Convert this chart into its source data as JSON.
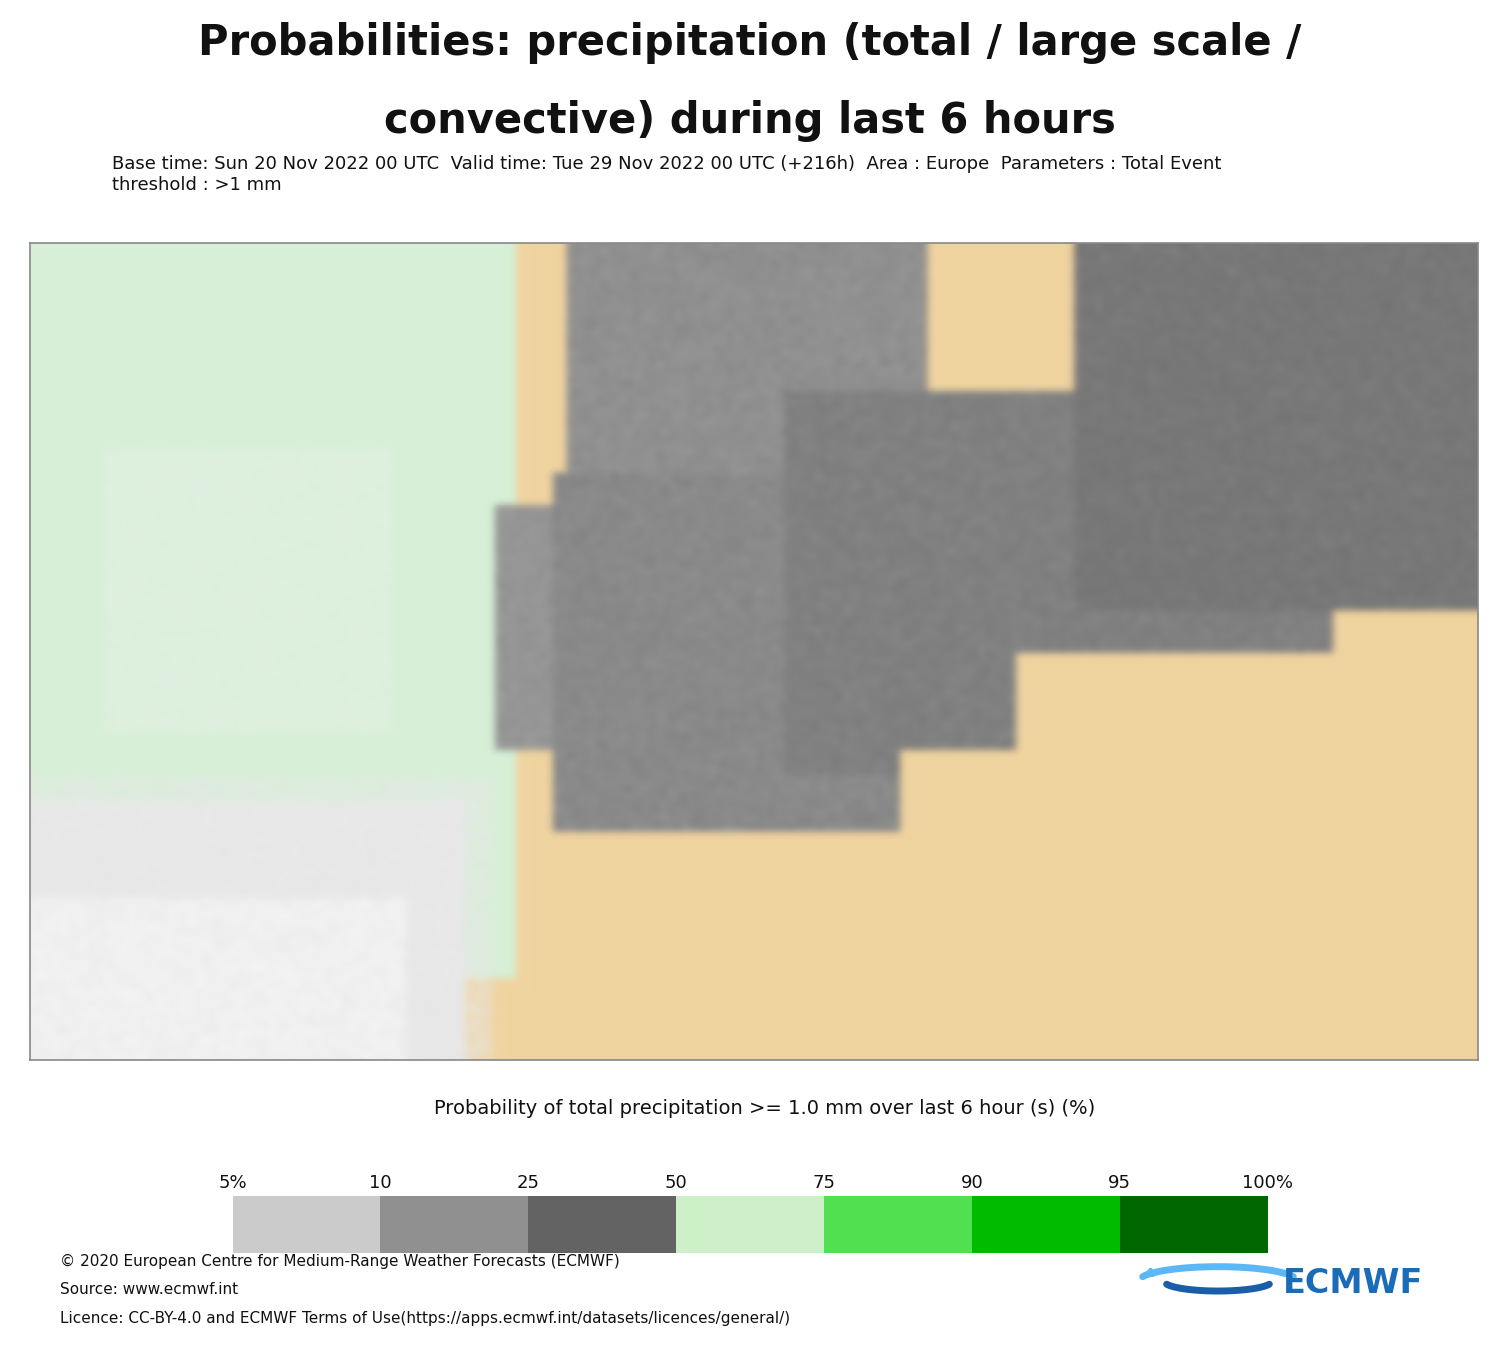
{
  "title_line1": "Probabilities: precipitation (total / large scale /",
  "title_line2": "convective) during last 6 hours",
  "subtitle": "Base time: Sun 20 Nov 2022 00 UTC  Valid time: Tue 29 Nov 2022 00 UTC (+216h)  Area : Europe  Parameters : Total Event\nthreshold : >1 mm",
  "colorbar_title": "Probability of total precipitation >= 1.0 mm over last 6 hour (s) (%)",
  "colorbar_labels": [
    "5%",
    "10",
    "25",
    "50",
    "75",
    "90",
    "95",
    "100%"
  ],
  "colorbar_colors_hex": [
    "#c8c8c8",
    "#a0a0a0",
    "#787878",
    "#ccf0cc",
    "#66dd66",
    "#00cc00",
    "#009900",
    "#003300"
  ],
  "colorbar_segment_widths": [
    1,
    2,
    3,
    3,
    2,
    1,
    1
  ],
  "footer_line1": "© 2020 European Centre for Medium-Range Weather Forecasts (ECMWF)",
  "footer_line2": "Source: www.ecmwf.int",
  "footer_line3": "Licence: CC-BY-4.0 and ECMWF Terms of Use(https://apps.ecmwf.int/datasets/licences/general/)",
  "bg_color": "#ffffff",
  "land_color": "#f0d4a0",
  "ocean_color": "#b8d4e8",
  "title_fontsize": 30,
  "subtitle_fontsize": 13,
  "colorbar_title_fontsize": 14,
  "colorbar_label_fontsize": 13,
  "footer_fontsize": 11,
  "title_color": "#111111",
  "map_border_color": "#888888"
}
